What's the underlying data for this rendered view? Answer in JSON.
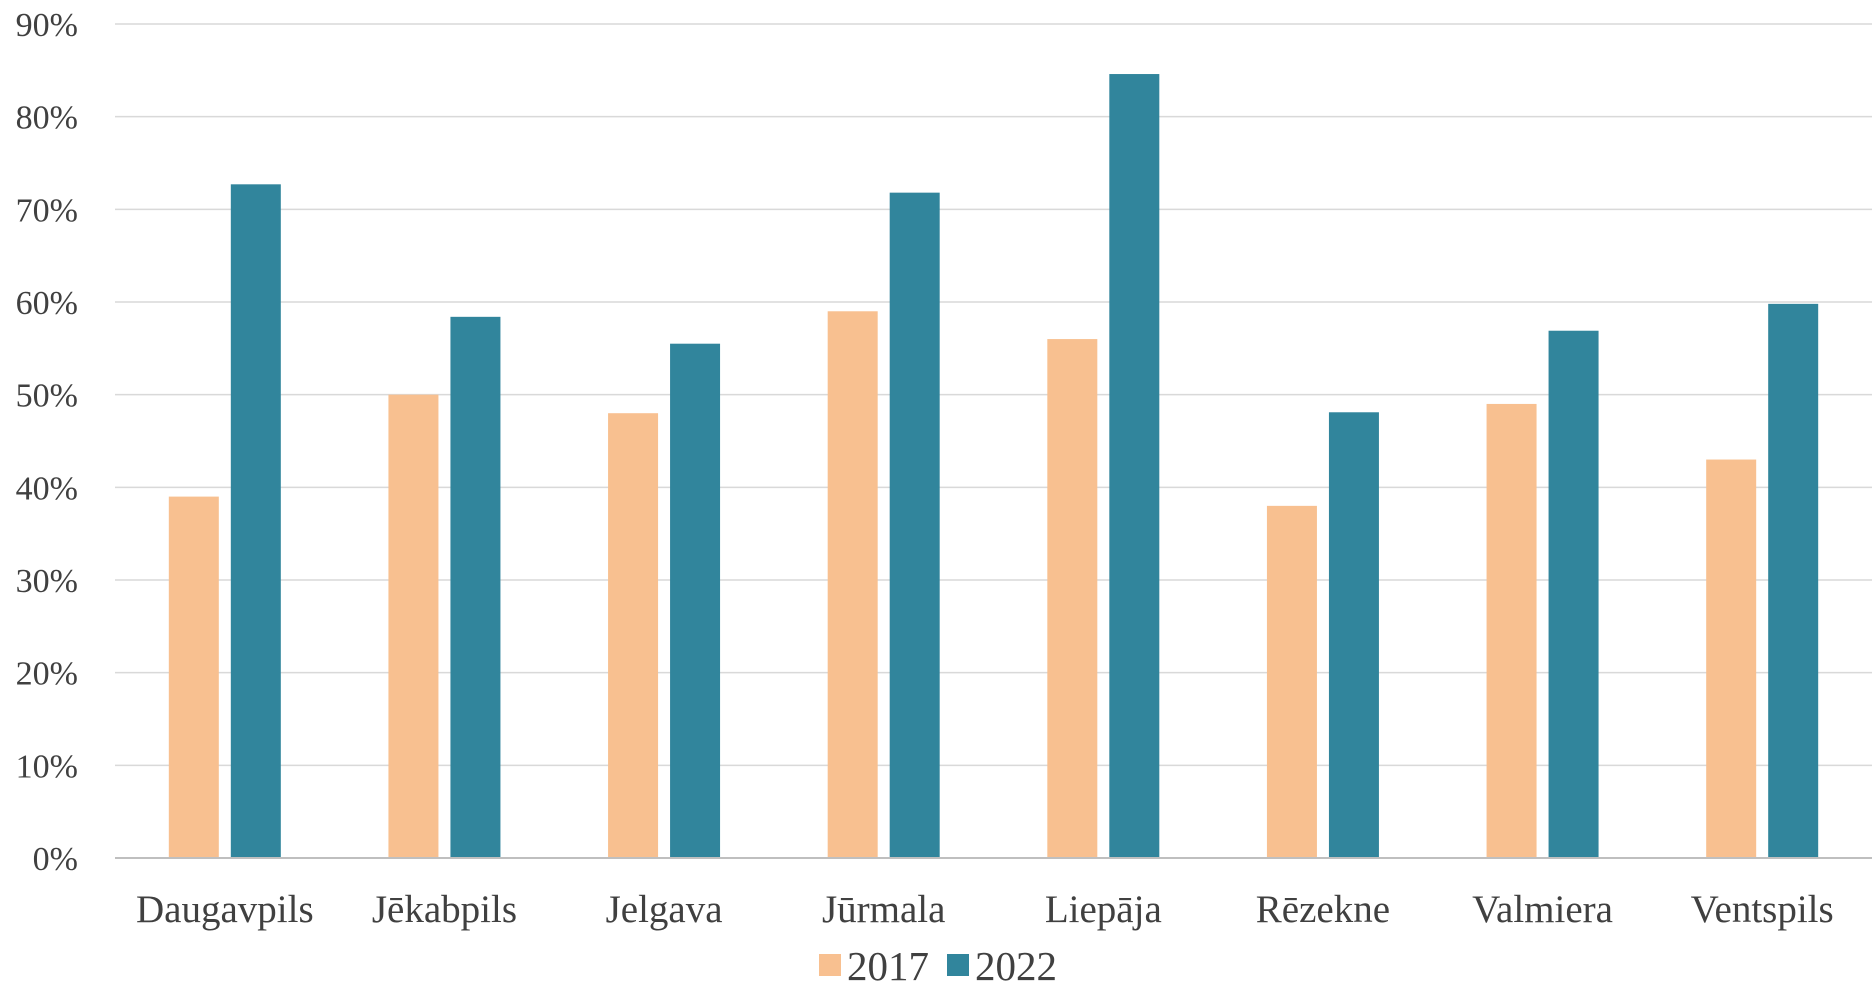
{
  "chart_data": {
    "type": "bar",
    "title": "",
    "xlabel": "",
    "ylabel": "",
    "categories": [
      "Daugavpils",
      "Jēkabpils",
      "Jelgava",
      "Jūrmala",
      "Liepāja",
      "Rēzekne",
      "Valmiera",
      "Ventspils"
    ],
    "series": [
      {
        "name": "2017",
        "color": "#F8C090",
        "values": [
          39,
          50,
          48,
          59,
          56,
          38,
          49,
          43
        ]
      },
      {
        "name": "2022",
        "color": "#31859C",
        "values": [
          72.7,
          58.4,
          55.5,
          71.8,
          84.6,
          48.1,
          56.9,
          59.8
        ]
      }
    ],
    "ylim": [
      0,
      90
    ],
    "yticks": [
      0,
      10,
      20,
      30,
      40,
      50,
      60,
      70,
      80,
      90
    ],
    "ytick_labels": [
      "0%",
      "10%",
      "20%",
      "30%",
      "40%",
      "50%",
      "60%",
      "70%",
      "80%",
      "90%"
    ],
    "value_format": "percent",
    "grid": true,
    "gridline_color": "#D9D9D9",
    "axis_color": "#BFBFBF",
    "legend_position": "bottom"
  }
}
